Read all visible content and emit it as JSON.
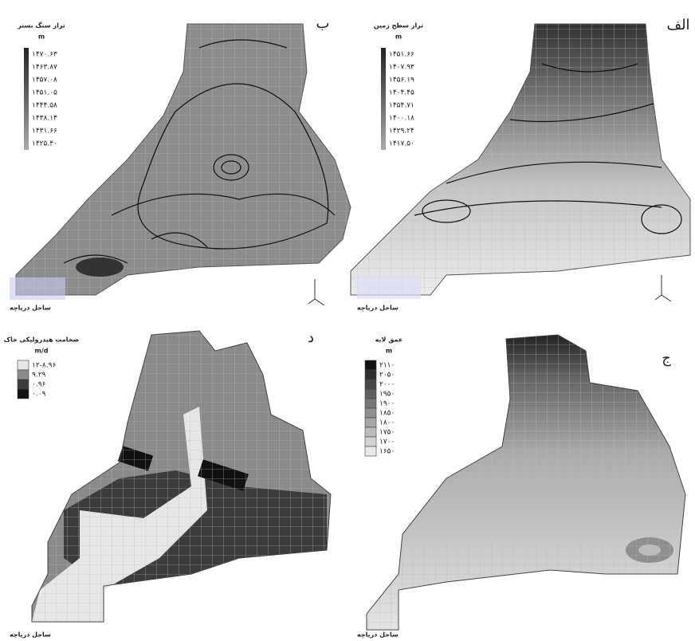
{
  "panels": [
    {
      "label": "ب",
      "legend": {
        "title": "تراز سنگ بستر",
        "unit": "m",
        "style": "gradient",
        "entries": [
          "۱۴۷۰.۶۳",
          "۱۴۶۳.۸۷",
          "۱۴۵۷.۰۸",
          "۱۴۵۱.۰۵",
          "۱۴۴۴.۵۸",
          "۱۴۳۸.۱۴",
          "۱۴۳۱.۶۶",
          "۱۴۲۵.۴۰"
        ]
      },
      "footnote": "ساحل دریاچه"
    },
    {
      "label": "الف",
      "legend": {
        "title": "تراز سطح زمین",
        "unit": "m",
        "style": "gradient",
        "entries": [
          "۱۴۵۱.۶۶",
          "۱۴۰۷.۹۳",
          "۱۴۵۶.۱۹",
          "۱۴۰۴.۴۵",
          "۱۴۵۴.۷۱",
          "۱۴۰۰.۱۸",
          "۱۴۲۹.۲۴",
          "۱۴۱۷.۵۰"
        ]
      },
      "footnote": "ساحل دریاچه"
    },
    {
      "label": "د",
      "legend": {
        "title": "ضخامت هیدرولیکی خاک",
        "unit": "m/d",
        "style": "boxes",
        "entries": [
          "۱۲-۸.۹۶",
          "۹.۲۹",
          "۰.۹۶",
          "۰.۰۹"
        ],
        "colors": [
          "#e6e6e6",
          "#8a8a8a",
          "#3c3c3c",
          "#111111"
        ]
      },
      "footnote": "ساحل دریاچه"
    },
    {
      "label": "ج",
      "legend": {
        "title": "عمق لایه",
        "unit": "m",
        "style": "boxes",
        "entries": [
          "۲۱۱۰",
          "۲۰۵۰",
          "۲۰۰۰",
          "۱۹۵۰",
          "۱۹۰۰",
          "۱۸۵۰",
          "۱۸۰۰",
          "۱۷۵۰",
          "۱۷۰۰",
          "۱۶۵۰"
        ],
        "colors": [
          "#111111",
          "#2e2e2e",
          "#484848",
          "#5f5f5f",
          "#777777",
          "#8f8f8f",
          "#a6a6a6",
          "#bcbcbc",
          "#d2d2d2",
          "#e8e8e8"
        ]
      },
      "footnote": "ساحل دریاچه"
    }
  ]
}
